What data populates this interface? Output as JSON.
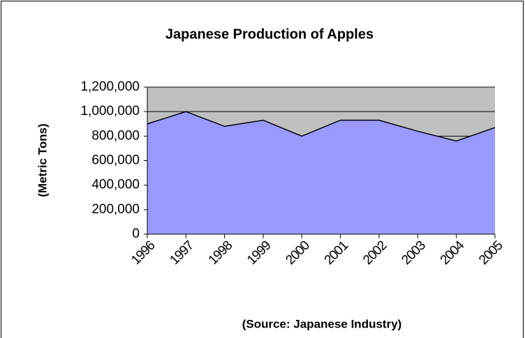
{
  "chart_data": {
    "type": "area",
    "title": "Japanese Production of Apples",
    "y_label": "(Metric Tons)",
    "source": "(Source: Japanese Industry)",
    "categories": [
      "1996",
      "1997",
      "1998",
      "1999",
      "2000",
      "2001",
      "2002",
      "2003",
      "2004",
      "2005"
    ],
    "values": [
      900000,
      1000000,
      880000,
      930000,
      800000,
      930000,
      930000,
      840000,
      760000,
      870000
    ],
    "color": "#9999ff",
    "plot_background": "#c0c0c0",
    "ylim": [
      0,
      1200000
    ],
    "yticks": [
      0,
      {
        "value": 200000,
        "label": "200,000"
      },
      {
        "value": 400000,
        "label": "400,000"
      },
      {
        "value": 600000,
        "label": "600,000"
      },
      {
        "value": 800000,
        "label": "800,000"
      },
      {
        "value": 1000000,
        "label": "1,000,000"
      },
      {
        "value": 1200000,
        "label": "1,200,000"
      }
    ],
    "grid": true
  }
}
